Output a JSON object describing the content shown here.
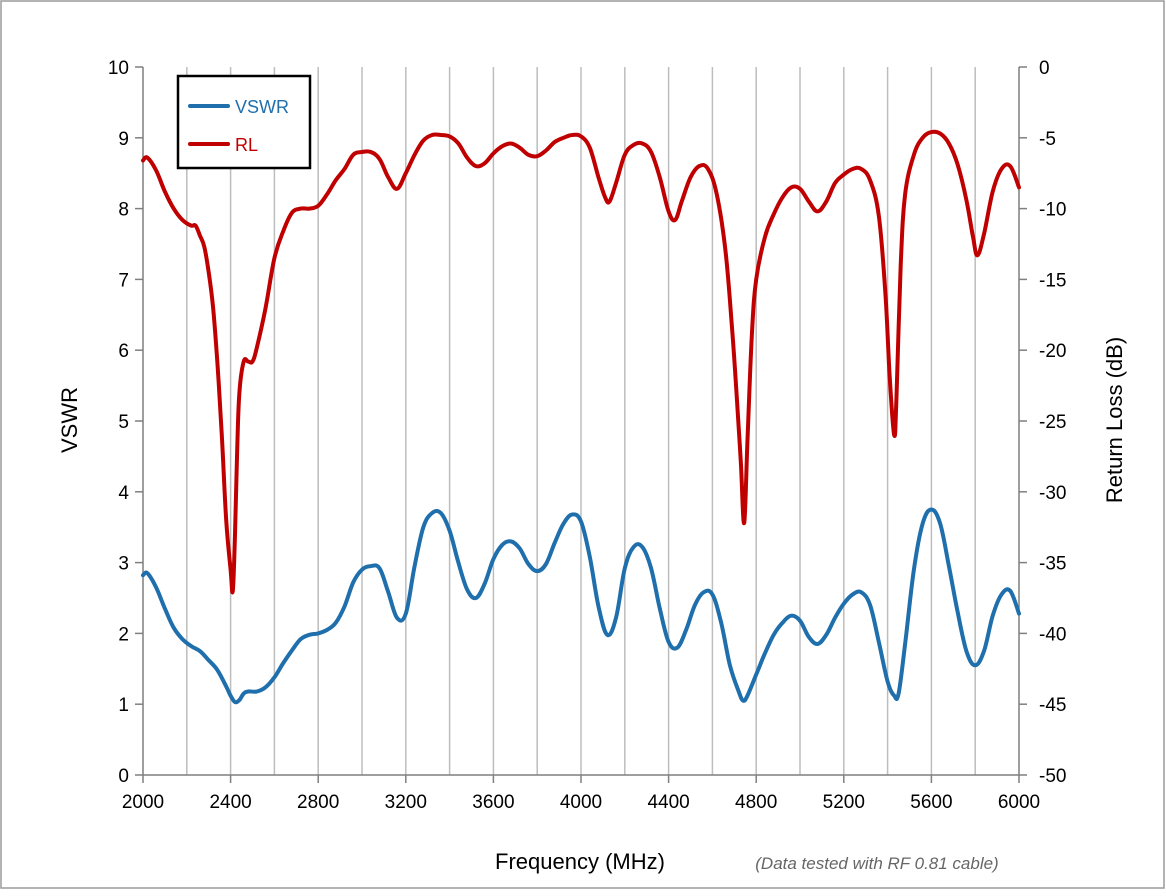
{
  "chart_data": {
    "type": "line",
    "xlabel": "Frequency (MHz)",
    "ylabel": "VSWR",
    "y2label": "Return Loss (dB)",
    "note": "(Data tested with RF 0.81 cable)",
    "xlim": [
      2000,
      6000
    ],
    "ylim": [
      0,
      10
    ],
    "y2lim": [
      -50,
      0
    ],
    "x_ticks": [
      2000,
      2400,
      2800,
      3200,
      3600,
      4000,
      4400,
      4800,
      5200,
      5600,
      6000
    ],
    "x_tick_labels": [
      "2000",
      "2400",
      "2800",
      "3200",
      "3600",
      "4000",
      "4400",
      "4800",
      "5200",
      "5600",
      "6000"
    ],
    "y_ticks": [
      0,
      1,
      2,
      3,
      4,
      5,
      6,
      7,
      8,
      9,
      10
    ],
    "y_tick_labels": [
      "0",
      "1",
      "2",
      "3",
      "4",
      "5",
      "6",
      "7",
      "8",
      "9",
      "10"
    ],
    "y2_ticks": [
      0,
      -5,
      -10,
      -15,
      -20,
      -25,
      -30,
      -35,
      -40,
      -45,
      -50
    ],
    "y2_tick_labels": [
      "0",
      "-5",
      "-10",
      "-15",
      "-20",
      "-25",
      "-30",
      "-35",
      "-40",
      "-45",
      "-50"
    ],
    "x_grid": true,
    "y_grid": false,
    "legend": "top-left",
    "series": [
      {
        "name": "VSWR",
        "axis": "left",
        "color": "#1f6fad",
        "x": [
          2000,
          2020,
          2060,
          2100,
          2140,
          2180,
          2220,
          2260,
          2300,
          2340,
          2380,
          2400,
          2420,
          2440,
          2460,
          2480,
          2520,
          2560,
          2600,
          2640,
          2680,
          2720,
          2760,
          2800,
          2840,
          2880,
          2920,
          2960,
          3000,
          3040,
          3080,
          3120,
          3160,
          3200,
          3240,
          3280,
          3320,
          3360,
          3400,
          3440,
          3480,
          3520,
          3560,
          3600,
          3640,
          3680,
          3720,
          3760,
          3800,
          3840,
          3880,
          3920,
          3960,
          4000,
          4040,
          4080,
          4120,
          4160,
          4200,
          4240,
          4280,
          4320,
          4360,
          4400,
          4440,
          4480,
          4520,
          4560,
          4600,
          4640,
          4680,
          4720,
          4740,
          4760,
          4800,
          4840,
          4880,
          4920,
          4960,
          5000,
          5040,
          5080,
          5120,
          5160,
          5200,
          5240,
          5280,
          5320,
          5360,
          5400,
          5430,
          5450,
          5480,
          5520,
          5560,
          5600,
          5640,
          5680,
          5720,
          5760,
          5800,
          5840,
          5880,
          5920,
          5960,
          6000
        ],
        "values": [
          2.82,
          2.85,
          2.65,
          2.35,
          2.08,
          1.92,
          1.82,
          1.75,
          1.62,
          1.48,
          1.25,
          1.12,
          1.03,
          1.06,
          1.15,
          1.18,
          1.18,
          1.24,
          1.38,
          1.58,
          1.76,
          1.92,
          1.98,
          2.0,
          2.05,
          2.15,
          2.38,
          2.72,
          2.9,
          2.95,
          2.92,
          2.58,
          2.22,
          2.28,
          2.95,
          3.5,
          3.7,
          3.7,
          3.45,
          3.0,
          2.62,
          2.5,
          2.7,
          3.05,
          3.25,
          3.3,
          3.2,
          2.98,
          2.88,
          2.98,
          3.28,
          3.55,
          3.68,
          3.58,
          3.08,
          2.38,
          1.98,
          2.22,
          2.92,
          3.22,
          3.22,
          2.92,
          2.35,
          1.88,
          1.8,
          2.05,
          2.4,
          2.58,
          2.55,
          2.15,
          1.55,
          1.18,
          1.05,
          1.12,
          1.42,
          1.72,
          1.98,
          2.15,
          2.25,
          2.18,
          1.95,
          1.85,
          1.98,
          2.22,
          2.42,
          2.55,
          2.58,
          2.4,
          1.88,
          1.32,
          1.12,
          1.15,
          1.85,
          2.9,
          3.55,
          3.75,
          3.55,
          2.95,
          2.3,
          1.75,
          1.55,
          1.75,
          2.25,
          2.55,
          2.6,
          2.28
        ]
      },
      {
        "name": "RL",
        "axis": "right",
        "color": "#c00000",
        "x": [
          2000,
          2020,
          2060,
          2100,
          2140,
          2180,
          2220,
          2240,
          2260,
          2280,
          2300,
          2320,
          2340,
          2360,
          2380,
          2400,
          2410,
          2420,
          2430,
          2440,
          2460,
          2480,
          2500,
          2520,
          2560,
          2600,
          2640,
          2680,
          2720,
          2760,
          2800,
          2840,
          2880,
          2920,
          2960,
          3000,
          3040,
          3080,
          3120,
          3160,
          3200,
          3240,
          3280,
          3320,
          3360,
          3400,
          3440,
          3480,
          3520,
          3560,
          3600,
          3640,
          3680,
          3720,
          3760,
          3800,
          3840,
          3880,
          3920,
          3960,
          4000,
          4040,
          4080,
          4110,
          4130,
          4160,
          4200,
          4240,
          4280,
          4320,
          4360,
          4400,
          4430,
          4460,
          4500,
          4540,
          4580,
          4620,
          4660,
          4690,
          4710,
          4730,
          4745,
          4760,
          4780,
          4800,
          4840,
          4880,
          4920,
          4960,
          5000,
          5040,
          5080,
          5120,
          5160,
          5200,
          5240,
          5280,
          5320,
          5360,
          5390,
          5410,
          5430,
          5440,
          5460,
          5480,
          5520,
          5560,
          5600,
          5640,
          5680,
          5720,
          5760,
          5790,
          5810,
          5840,
          5880,
          5920,
          5960,
          6000
        ],
        "values": [
          -6.6,
          -6.4,
          -7.3,
          -8.8,
          -10.0,
          -10.8,
          -11.2,
          -11.2,
          -11.9,
          -12.7,
          -14.5,
          -17.0,
          -21.0,
          -26.0,
          -32.0,
          -35.5,
          -37.0,
          -33.0,
          -27.0,
          -23.0,
          -20.8,
          -20.8,
          -20.8,
          -19.8,
          -17.0,
          -13.5,
          -11.6,
          -10.3,
          -10.0,
          -10.0,
          -9.8,
          -9.0,
          -8.0,
          -7.2,
          -6.2,
          -6.0,
          -6.0,
          -6.5,
          -7.8,
          -8.6,
          -7.5,
          -6.2,
          -5.2,
          -4.8,
          -4.8,
          -4.9,
          -5.4,
          -6.4,
          -7.0,
          -6.8,
          -6.1,
          -5.6,
          -5.4,
          -5.7,
          -6.2,
          -6.3,
          -5.9,
          -5.3,
          -5.0,
          -4.8,
          -4.9,
          -5.7,
          -7.8,
          -9.2,
          -9.5,
          -8.2,
          -6.2,
          -5.5,
          -5.4,
          -6.0,
          -7.8,
          -10.2,
          -10.8,
          -9.5,
          -7.8,
          -7.0,
          -7.2,
          -9.0,
          -13.0,
          -18.5,
          -23.0,
          -28.0,
          -32.2,
          -26.5,
          -19.0,
          -15.0,
          -12.0,
          -10.4,
          -9.2,
          -8.5,
          -8.6,
          -9.5,
          -10.2,
          -9.5,
          -8.2,
          -7.6,
          -7.2,
          -7.2,
          -8.0,
          -10.5,
          -16.0,
          -22.0,
          -26.0,
          -23.5,
          -14.0,
          -9.0,
          -6.2,
          -5.0,
          -4.6,
          -4.7,
          -5.4,
          -6.9,
          -9.4,
          -12.0,
          -13.3,
          -11.8,
          -8.8,
          -7.2,
          -7.0,
          -8.5
        ]
      }
    ]
  }
}
